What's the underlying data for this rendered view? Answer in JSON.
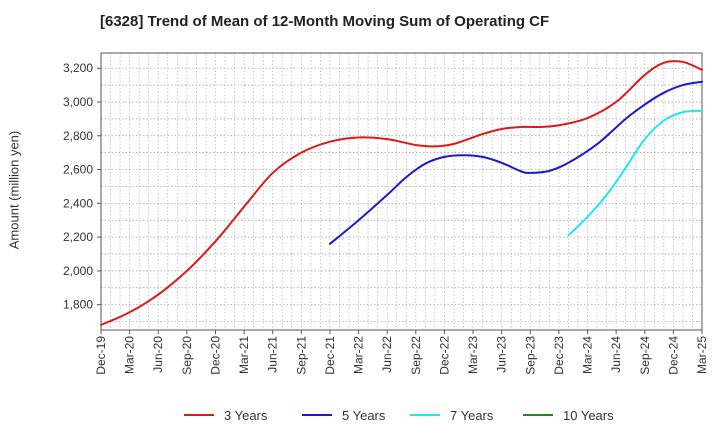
{
  "chart_data": {
    "type": "line",
    "title": "[6328]  Trend of Mean of 12-Month Moving Sum of Operating CF",
    "xlabel": "",
    "ylabel": "Amount (million yen)",
    "ylim": [
      1650,
      3290
    ],
    "yticks": [
      1800,
      2000,
      2200,
      2400,
      2600,
      2800,
      3000,
      3200
    ],
    "ytick_labels": [
      "1,800",
      "2,000",
      "2,200",
      "2,400",
      "2,600",
      "2,800",
      "3,000",
      "3,200"
    ],
    "xticks": [
      "Dec-19",
      "Mar-20",
      "Jun-20",
      "Sep-20",
      "Dec-20",
      "Mar-21",
      "Jun-21",
      "Sep-21",
      "Dec-21",
      "Mar-22",
      "Jun-22",
      "Sep-22",
      "Dec-22",
      "Mar-23",
      "Jun-23",
      "Sep-23",
      "Dec-23",
      "Mar-24",
      "Jun-24",
      "Sep-24",
      "Dec-24",
      "Mar-25"
    ],
    "x_index_range": [
      0,
      63
    ],
    "grid": true,
    "legend_position": "bottom",
    "series": [
      {
        "name": "3 Years",
        "color": "#dd1a1a",
        "points": [
          [
            0,
            1680
          ],
          [
            3,
            1755
          ],
          [
            6,
            1860
          ],
          [
            9,
            2000
          ],
          [
            12,
            2175
          ],
          [
            15,
            2380
          ],
          [
            18,
            2580
          ],
          [
            21,
            2700
          ],
          [
            24,
            2765
          ],
          [
            27,
            2790
          ],
          [
            30,
            2780
          ],
          [
            33,
            2745
          ],
          [
            35,
            2737
          ],
          [
            37,
            2752
          ],
          [
            40,
            2810
          ],
          [
            42,
            2840
          ],
          [
            44,
            2852
          ],
          [
            46,
            2852
          ],
          [
            48,
            2862
          ],
          [
            51,
            2905
          ],
          [
            54,
            3000
          ],
          [
            57,
            3160
          ],
          [
            59,
            3232
          ],
          [
            61,
            3237
          ],
          [
            63,
            3190
          ]
        ]
      },
      {
        "name": "5 Years",
        "color": "#1a1acc",
        "points": [
          [
            24,
            2160
          ],
          [
            27,
            2300
          ],
          [
            30,
            2450
          ],
          [
            32,
            2555
          ],
          [
            34,
            2635
          ],
          [
            36,
            2675
          ],
          [
            38,
            2685
          ],
          [
            40,
            2675
          ],
          [
            42,
            2640
          ],
          [
            44,
            2590
          ],
          [
            45,
            2580
          ],
          [
            47,
            2592
          ],
          [
            49,
            2640
          ],
          [
            52,
            2750
          ],
          [
            55,
            2900
          ],
          [
            57,
            2985
          ],
          [
            59,
            3055
          ],
          [
            61,
            3100
          ],
          [
            63,
            3120
          ]
        ]
      },
      {
        "name": "7 Years",
        "color": "#22e6f0",
        "points": [
          [
            49,
            2210
          ],
          [
            51,
            2320
          ],
          [
            53,
            2450
          ],
          [
            55,
            2610
          ],
          [
            57,
            2780
          ],
          [
            59,
            2890
          ],
          [
            61,
            2940
          ],
          [
            63,
            2948
          ]
        ]
      },
      {
        "name": "10 Years",
        "color": "#1e8c1e",
        "points": []
      }
    ]
  }
}
